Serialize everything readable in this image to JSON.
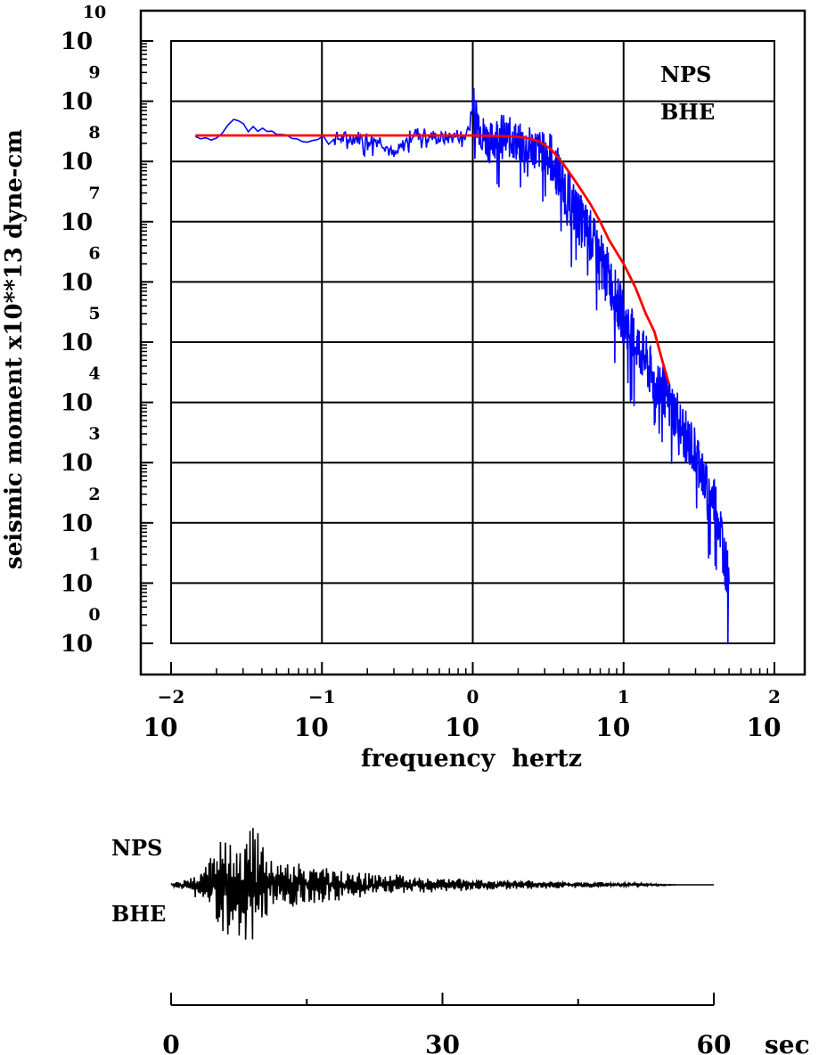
{
  "chart_data": [
    {
      "type": "line",
      "station": "NPS",
      "component": "BHE",
      "xlabel": "frequency  hertz",
      "ylabel": "seismic moment x10**13 dyne-cm",
      "x_scale": "log",
      "y_scale": "log",
      "xlim": [
        0.01,
        100
      ],
      "ylim": [
        1,
        10000000000.0
      ],
      "x_tick_base": "10",
      "x_tick_exponents": [
        "−2",
        "−1",
        "0",
        "1",
        "2"
      ],
      "y_tick_base": "10",
      "y_tick_exponents": [
        "0",
        "1",
        "2",
        "3",
        "4",
        "5",
        "6",
        "7",
        "8",
        "9",
        "10"
      ],
      "grid": true,
      "series": [
        {
          "role": "observed spectrum",
          "color": "#0000ff",
          "x": [
            0.0145,
            0.02,
            0.026,
            0.035,
            0.05,
            0.08,
            0.12,
            0.18,
            0.25,
            0.3,
            0.4,
            0.5,
            0.6,
            0.7,
            0.8,
            0.9,
            1.0,
            1.05,
            1.15,
            1.3,
            1.5,
            1.8,
            2.2,
            2.7,
            3.3,
            4.0,
            5.0,
            6.0,
            7.0,
            8.0,
            9.0,
            10.0,
            12.0,
            14.0,
            16.0,
            18.0,
            20.0,
            23.0,
            26.0,
            30.0,
            33.0,
            36.0,
            40.0,
            44.0,
            47.0,
            50.0
          ],
          "values": [
            260000000.0,
            240000000.0,
            500000000.0,
            350000000.0,
            300000000.0,
            220000000.0,
            240000000.0,
            250000000.0,
            220000000.0,
            120000000.0,
            290000000.0,
            280000000.0,
            240000000.0,
            250000000.0,
            270000000.0,
            260000000.0,
            900000000.0,
            600000000.0,
            300000000.0,
            200000000.0,
            300000000.0,
            240000000.0,
            180000000.0,
            160000000.0,
            120000000.0,
            40000000.0,
            12000000.0,
            6000000.0,
            2500000.0,
            1200000.0,
            500000.0,
            250000.0,
            100000.0,
            50000.0,
            20000.0,
            20000.0,
            9000,
            6000,
            2500,
            1500,
            800,
            300,
            250,
            80,
            25,
            10
          ]
        },
        {
          "role": "model fit",
          "color": "#ff0000",
          "x": [
            0.0145,
            0.05,
            0.1,
            0.3,
            1.0,
            1.8,
            2.2,
            2.7,
            3.3,
            4.0,
            5.0,
            6.0,
            7.0,
            8.0,
            10.0,
            12.0,
            14.0,
            16.0,
            18.0,
            20.0
          ],
          "values": [
            270000000.0,
            270000000.0,
            270000000.0,
            270000000.0,
            270000000.0,
            260000000.0,
            250000000.0,
            220000000.0,
            160000000.0,
            90000000.0,
            40000000.0,
            20000000.0,
            10000000.0,
            5000000.0,
            2000000.0,
            800000.0,
            300000.0,
            150000.0,
            50000.0,
            20000.0
          ]
        }
      ]
    },
    {
      "type": "line",
      "role": "seismogram",
      "station": "NPS",
      "component": "BHE",
      "x_units": "sec",
      "xlim": [
        0,
        60
      ],
      "x_ticks": [
        "0",
        "30",
        "60"
      ],
      "envelope": {
        "t": [
          0,
          2,
          4,
          6,
          8,
          9,
          10,
          12,
          15,
          20,
          25,
          30,
          35,
          40,
          45,
          50,
          55,
          56,
          60
        ],
        "amplitude": [
          0.02,
          0.1,
          0.35,
          0.7,
          0.8,
          1.0,
          0.55,
          0.35,
          0.3,
          0.2,
          0.15,
          0.1,
          0.08,
          0.06,
          0.05,
          0.03,
          0.01,
          0,
          0
        ]
      }
    }
  ]
}
